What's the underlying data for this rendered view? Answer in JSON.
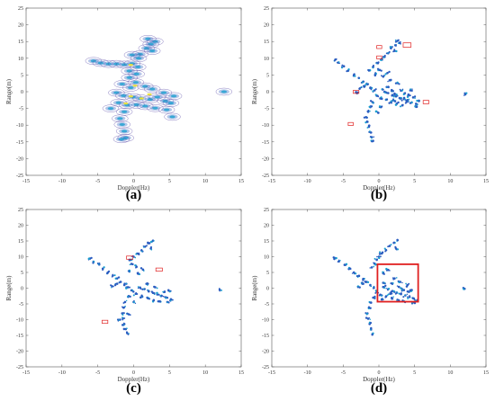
{
  "figure": {
    "panel_labels": [
      "(a)",
      "(b)",
      "(c)",
      "(d)"
    ]
  },
  "colors": {
    "point": "#2a5cc0",
    "point_core": "#1aa0d0",
    "hot": "#e8e040",
    "contour": "#5a4aa8",
    "box": "#e02020",
    "axis": "#555555"
  },
  "chart_data": [
    {
      "id": "a",
      "type": "scatter",
      "style": "contour",
      "title": "",
      "xlabel": "Doppler(Hz)",
      "ylabel": "Range(m)",
      "xlim": [
        -15,
        15
      ],
      "ylim": [
        -25,
        25
      ],
      "xticks": [
        -15,
        -10,
        -5,
        0,
        5,
        10,
        15
      ],
      "yticks": [
        25,
        20,
        15,
        10,
        5,
        0,
        -5,
        -10,
        -15,
        -20,
        -25
      ],
      "grid": false,
      "points": [
        [
          2.0,
          15.8
        ],
        [
          3.0,
          15.0
        ],
        [
          2.4,
          14.2
        ],
        [
          1.8,
          13.0
        ],
        [
          2.6,
          12.2
        ],
        [
          0.9,
          11.2
        ],
        [
          -0.2,
          11.0
        ],
        [
          0.7,
          10.0
        ],
        [
          -5.6,
          9.2
        ],
        [
          -4.6,
          8.6
        ],
        [
          -3.5,
          8.3
        ],
        [
          -2.4,
          8.3
        ],
        [
          -1.3,
          8.1
        ],
        [
          -0.2,
          8.4
        ],
        [
          0.6,
          7.4
        ],
        [
          -0.6,
          6.2
        ],
        [
          0.4,
          5.3
        ],
        [
          -0.6,
          4.2
        ],
        [
          0.3,
          2.8
        ],
        [
          -1.6,
          2.3
        ],
        [
          -0.4,
          1.2
        ],
        [
          1.6,
          1.6
        ],
        [
          2.6,
          0.8
        ],
        [
          4.2,
          -0.3
        ],
        [
          5.6,
          -1.3
        ],
        [
          -2.4,
          -0.3
        ],
        [
          -1.4,
          -1.2
        ],
        [
          -0.1,
          -1.6
        ],
        [
          1.0,
          -2.0
        ],
        [
          2.3,
          -2.3
        ],
        [
          3.3,
          -1.6
        ],
        [
          4.4,
          -2.8
        ],
        [
          5.2,
          -3.4
        ],
        [
          -2.1,
          -3.3
        ],
        [
          -0.9,
          -4.0
        ],
        [
          0.4,
          -3.9
        ],
        [
          1.6,
          -4.3
        ],
        [
          3.0,
          -4.9
        ],
        [
          -1.3,
          -6.0
        ],
        [
          -1.9,
          -8.0
        ],
        [
          -1.6,
          -9.8
        ],
        [
          -1.3,
          -11.8
        ],
        [
          -1.1,
          -13.8
        ],
        [
          -1.7,
          -14.2
        ],
        [
          -3.2,
          -5.0
        ],
        [
          4.6,
          -5.4
        ],
        [
          12.6,
          0.0
        ],
        [
          5.4,
          -7.5
        ]
      ],
      "hot_points": [
        [
          -0.4,
          8.0
        ],
        [
          0.2,
          1.8
        ],
        [
          -0.4,
          -1.4
        ],
        [
          1.1,
          -2.0
        ],
        [
          -1.1,
          -3.5
        ],
        [
          2.2,
          -0.8
        ]
      ]
    },
    {
      "id": "b",
      "type": "scatter",
      "title": "",
      "xlabel": "Doppler(Hz)",
      "ylabel": "Range(m)",
      "xlim": [
        -15,
        15
      ],
      "ylim": [
        -25,
        25
      ],
      "xticks": [
        -15,
        -10,
        -5,
        0,
        5,
        10,
        15
      ],
      "yticks": [
        25,
        20,
        15,
        10,
        5,
        0,
        -5,
        -10,
        -15,
        -20,
        -25
      ],
      "grid": false,
      "points": [
        [
          2.6,
          15.2
        ],
        [
          2.9,
          14.6
        ],
        [
          2.3,
          13.9
        ],
        [
          1.7,
          13.0
        ],
        [
          2.2,
          12.2
        ],
        [
          1.3,
          11.5
        ],
        [
          0.8,
          10.4
        ],
        [
          0.3,
          9.6
        ],
        [
          -0.3,
          8.6
        ],
        [
          -0.8,
          7.4
        ],
        [
          -1.3,
          6.4
        ],
        [
          -6.1,
          9.6
        ],
        [
          -5.7,
          8.7
        ],
        [
          -4.9,
          7.6
        ],
        [
          -4.3,
          6.3
        ],
        [
          -3.5,
          5.0
        ],
        [
          -2.8,
          4.1
        ],
        [
          -2.2,
          3.0
        ],
        [
          -1.6,
          2.2
        ],
        [
          -1.2,
          1.1
        ],
        [
          -0.6,
          0.4
        ],
        [
          -0.3,
          -1.2
        ],
        [
          0.2,
          -2.0
        ],
        [
          -0.9,
          -3.1
        ],
        [
          -1.2,
          -4.6
        ],
        [
          -1.5,
          -6.0
        ],
        [
          -1.8,
          -7.6
        ],
        [
          -1.6,
          -9.0
        ],
        [
          -1.4,
          -10.5
        ],
        [
          -1.1,
          -12.2
        ],
        [
          -1.0,
          -13.6
        ],
        [
          -0.9,
          -14.8
        ],
        [
          0.8,
          0.0
        ],
        [
          1.3,
          -0.4
        ],
        [
          1.9,
          -1.0
        ],
        [
          2.4,
          -1.4
        ],
        [
          2.9,
          -1.9
        ],
        [
          3.5,
          -2.2
        ],
        [
          4.0,
          -2.5
        ],
        [
          4.6,
          -3.2
        ],
        [
          5.2,
          -3.6
        ],
        [
          5.6,
          -2.8
        ],
        [
          1.0,
          -2.4
        ],
        [
          1.7,
          -3.1
        ],
        [
          2.5,
          -3.6
        ],
        [
          3.3,
          -4.1
        ],
        [
          3.9,
          -3.0
        ],
        [
          0.5,
          0.7
        ],
        [
          1.1,
          1.4
        ],
        [
          1.8,
          0.5
        ],
        [
          2.2,
          -0.6
        ],
        [
          3.1,
          0.3
        ],
        [
          4.1,
          -1.2
        ],
        [
          4.8,
          -1.7
        ],
        [
          -2.0,
          1.6
        ],
        [
          -2.7,
          0.9
        ],
        [
          -3.2,
          -0.1
        ],
        [
          0.6,
          4.5
        ],
        [
          1.2,
          5.6
        ],
        [
          -0.5,
          5.2
        ],
        [
          0.1,
          6.5
        ],
        [
          2.6,
          2.6
        ],
        [
          5.3,
          -4.5
        ],
        [
          0.3,
          -4.6
        ],
        [
          -0.1,
          -6.3
        ],
        [
          12.1,
          -0.8
        ],
        [
          1.5,
          3.4
        ],
        [
          3.6,
          -0.5
        ],
        [
          4.4,
          0.4
        ],
        [
          2.0,
          -2.6
        ]
      ],
      "boxes": [
        {
          "x": -0.3,
          "y": 13.8,
          "w": 0.7,
          "h": 0.9
        },
        {
          "x": 3.4,
          "y": 14.6,
          "w": 1.1,
          "h": 1.3
        },
        {
          "x": -0.3,
          "y": 10.7,
          "w": 0.7,
          "h": 0.9
        },
        {
          "x": -3.6,
          "y": 0.4,
          "w": 0.8,
          "h": 0.9
        },
        {
          "x": -4.3,
          "y": -9.2,
          "w": 0.7,
          "h": 0.9
        },
        {
          "x": 6.2,
          "y": -2.6,
          "w": 0.8,
          "h": 1.0
        }
      ]
    },
    {
      "id": "c",
      "type": "scatter",
      "title": "",
      "xlabel": "Doppler(Hz)",
      "ylabel": "Range(m)",
      "xlim": [
        -15,
        15
      ],
      "ylim": [
        -25,
        25
      ],
      "xticks": [
        -15,
        -10,
        -5,
        0,
        5,
        10,
        15
      ],
      "yticks": [
        25,
        20,
        15,
        10,
        5,
        0,
        -5,
        -10,
        -15,
        -20,
        -25
      ],
      "grid": false,
      "points": [
        [
          2.7,
          15.1
        ],
        [
          2.2,
          14.3
        ],
        [
          1.6,
          13.2
        ],
        [
          2.4,
          12.6
        ],
        [
          1.1,
          12.0
        ],
        [
          0.5,
          11.0
        ],
        [
          0.0,
          10.0
        ],
        [
          -0.4,
          9.0
        ],
        [
          -0.3,
          7.7
        ],
        [
          0.4,
          6.8
        ],
        [
          -6.1,
          9.4
        ],
        [
          -5.6,
          8.4
        ],
        [
          -4.8,
          7.5
        ],
        [
          -4.3,
          6.2
        ],
        [
          -3.6,
          5.0
        ],
        [
          -2.9,
          4.0
        ],
        [
          -2.3,
          3.1
        ],
        [
          -1.8,
          2.0
        ],
        [
          -1.3,
          1.0
        ],
        [
          -0.8,
          0.3
        ],
        [
          -0.3,
          -0.7
        ],
        [
          0.3,
          -1.8
        ],
        [
          -0.7,
          -2.5
        ],
        [
          -1.2,
          -4.4
        ],
        [
          -1.4,
          -6.2
        ],
        [
          -1.6,
          -8.0
        ],
        [
          -1.5,
          -9.6
        ],
        [
          -1.3,
          -11.4
        ],
        [
          -1.1,
          -13.0
        ],
        [
          -0.9,
          -14.3
        ],
        [
          0.9,
          0.2
        ],
        [
          1.5,
          -0.3
        ],
        [
          2.1,
          -0.9
        ],
        [
          2.7,
          -1.5
        ],
        [
          3.3,
          -2.0
        ],
        [
          3.9,
          -2.4
        ],
        [
          4.5,
          -2.9
        ],
        [
          5.2,
          -3.5
        ],
        [
          1.2,
          -2.7
        ],
        [
          2.0,
          -3.2
        ],
        [
          2.8,
          -3.8
        ],
        [
          3.6,
          -4.2
        ],
        [
          4.3,
          -1.2
        ],
        [
          4.9,
          -0.8
        ],
        [
          0.6,
          4.8
        ],
        [
          1.3,
          5.9
        ],
        [
          -0.6,
          5.3
        ],
        [
          1.9,
          1.5
        ],
        [
          -2.3,
          1.4
        ],
        [
          -3.0,
          0.6
        ],
        [
          4.7,
          -4.4
        ],
        [
          3.0,
          0.3
        ],
        [
          12.0,
          -0.5
        ],
        [
          0.0,
          -4.4
        ],
        [
          -1.9,
          -10.0
        ],
        [
          -0.7,
          -8.3
        ]
      ],
      "boxes": [
        {
          "x": -1.0,
          "y": 10.2,
          "w": 0.9,
          "h": 1.0
        },
        {
          "x": 3.1,
          "y": 6.4,
          "w": 0.9,
          "h": 1.0
        },
        {
          "x": -4.4,
          "y": -10.2,
          "w": 0.8,
          "h": 1.0
        }
      ]
    },
    {
      "id": "d",
      "type": "scatter",
      "title": "",
      "xlabel": "Doppler(Hz)",
      "ylabel": "Range(m)",
      "xlim": [
        -15,
        15
      ],
      "ylim": [
        -25,
        25
      ],
      "xticks": [
        -15,
        -10,
        -5,
        0,
        5,
        10,
        15
      ],
      "yticks": [
        25,
        20,
        15,
        10,
        5,
        0,
        -5,
        -10,
        -15,
        -20,
        -25
      ],
      "grid": false,
      "points": [
        [
          2.6,
          15.3
        ],
        [
          2.1,
          14.4
        ],
        [
          1.5,
          13.4
        ],
        [
          2.4,
          12.6
        ],
        [
          1.0,
          12.1
        ],
        [
          0.4,
          11.0
        ],
        [
          0.0,
          10.0
        ],
        [
          -0.3,
          9.0
        ],
        [
          -0.6,
          7.8
        ],
        [
          -1.0,
          6.6
        ],
        [
          -6.2,
          9.6
        ],
        [
          -5.6,
          8.5
        ],
        [
          -4.8,
          7.4
        ],
        [
          -4.2,
          6.1
        ],
        [
          -3.5,
          5.0
        ],
        [
          -2.8,
          3.9
        ],
        [
          -2.2,
          2.9
        ],
        [
          -1.7,
          2.0
        ],
        [
          -1.2,
          1.0
        ],
        [
          -0.7,
          0.1
        ],
        [
          -0.3,
          -1.1
        ],
        [
          0.2,
          -2.1
        ],
        [
          -0.8,
          -3.0
        ],
        [
          -1.1,
          -4.6
        ],
        [
          -1.4,
          -6.3
        ],
        [
          -1.6,
          -8.0
        ],
        [
          -1.5,
          -9.7
        ],
        [
          -1.3,
          -11.4
        ],
        [
          -1.1,
          -13.0
        ],
        [
          -0.9,
          -14.6
        ],
        [
          0.7,
          0.3
        ],
        [
          1.3,
          -0.3
        ],
        [
          1.9,
          -0.9
        ],
        [
          2.5,
          -1.4
        ],
        [
          3.1,
          -1.9
        ],
        [
          3.7,
          -2.3
        ],
        [
          4.3,
          -2.8
        ],
        [
          4.9,
          -3.3
        ],
        [
          5.4,
          -3.8
        ],
        [
          1.0,
          -2.6
        ],
        [
          1.8,
          -3.1
        ],
        [
          2.6,
          -3.7
        ],
        [
          3.4,
          -4.1
        ],
        [
          4.1,
          -1.1
        ],
        [
          4.6,
          -0.6
        ],
        [
          0.6,
          4.7
        ],
        [
          1.3,
          5.8
        ],
        [
          0.6,
          1.7
        ],
        [
          1.9,
          1.5
        ],
        [
          2.8,
          0.4
        ],
        [
          3.5,
          -0.6
        ],
        [
          -2.2,
          1.4
        ],
        [
          -2.9,
          0.5
        ],
        [
          4.8,
          -4.5
        ],
        [
          0.4,
          -3.6
        ],
        [
          12.0,
          -0.2
        ],
        [
          2.2,
          3.1
        ],
        [
          3.0,
          2.0
        ],
        [
          4.0,
          1.0
        ],
        [
          1.6,
          -1.8
        ]
      ],
      "boxes": [
        {
          "x": -0.2,
          "y": 7.6,
          "w": 5.7,
          "h": 11.9,
          "thick": true
        }
      ]
    }
  ]
}
